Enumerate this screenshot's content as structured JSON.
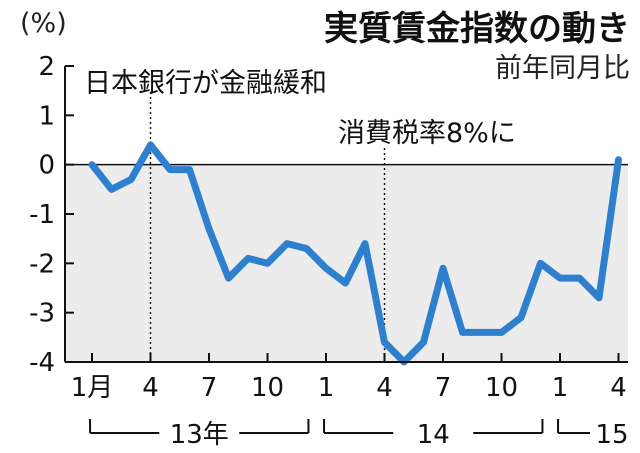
{
  "chart_data": {
    "type": "line",
    "title": "実質賃金指数の動き",
    "subtitle": "前年同月比",
    "y_unit": "(%)",
    "ylim": [
      -4,
      2
    ],
    "y_ticks": [
      "2",
      "1",
      "0",
      "-1",
      "-2",
      "-3",
      "-4"
    ],
    "x": [
      "2013-01",
      "2013-02",
      "2013-03",
      "2013-04",
      "2013-05",
      "2013-06",
      "2013-07",
      "2013-08",
      "2013-09",
      "2013-10",
      "2013-11",
      "2013-12",
      "2014-01",
      "2014-02",
      "2014-03",
      "2014-04",
      "2014-05",
      "2014-06",
      "2014-07",
      "2014-08",
      "2014-09",
      "2014-10",
      "2014-11",
      "2014-12",
      "2015-01",
      "2015-02",
      "2015-03",
      "2015-04"
    ],
    "series": [
      {
        "values": [
          0.0,
          -0.5,
          -0.3,
          0.4,
          -0.1,
          -0.1,
          -1.3,
          -2.3,
          -1.9,
          -2.0,
          -1.6,
          -1.7,
          -2.1,
          -2.4,
          -1.6,
          -3.6,
          -4.0,
          -3.6,
          -2.1,
          -3.4,
          -3.4,
          -3.4,
          -3.1,
          -2.0,
          -2.3,
          -2.3,
          -2.7,
          0.1
        ]
      }
    ],
    "x_tick_labels": [
      "1月",
      "4",
      "7",
      "10",
      "1",
      "4",
      "7",
      "10",
      "1",
      "4"
    ],
    "year_labels": [
      "13年",
      "14",
      "15"
    ],
    "annotations": [
      {
        "label": "日本銀行が金融緩和",
        "x": "2013-04"
      },
      {
        "label": "消費税率8%に",
        "x": "2014-04"
      }
    ],
    "grid": false,
    "negative_region_shaded": true
  },
  "colors": {
    "line": "#2f7fcf",
    "negative_fill": "#ececec",
    "axis": "#111111"
  }
}
